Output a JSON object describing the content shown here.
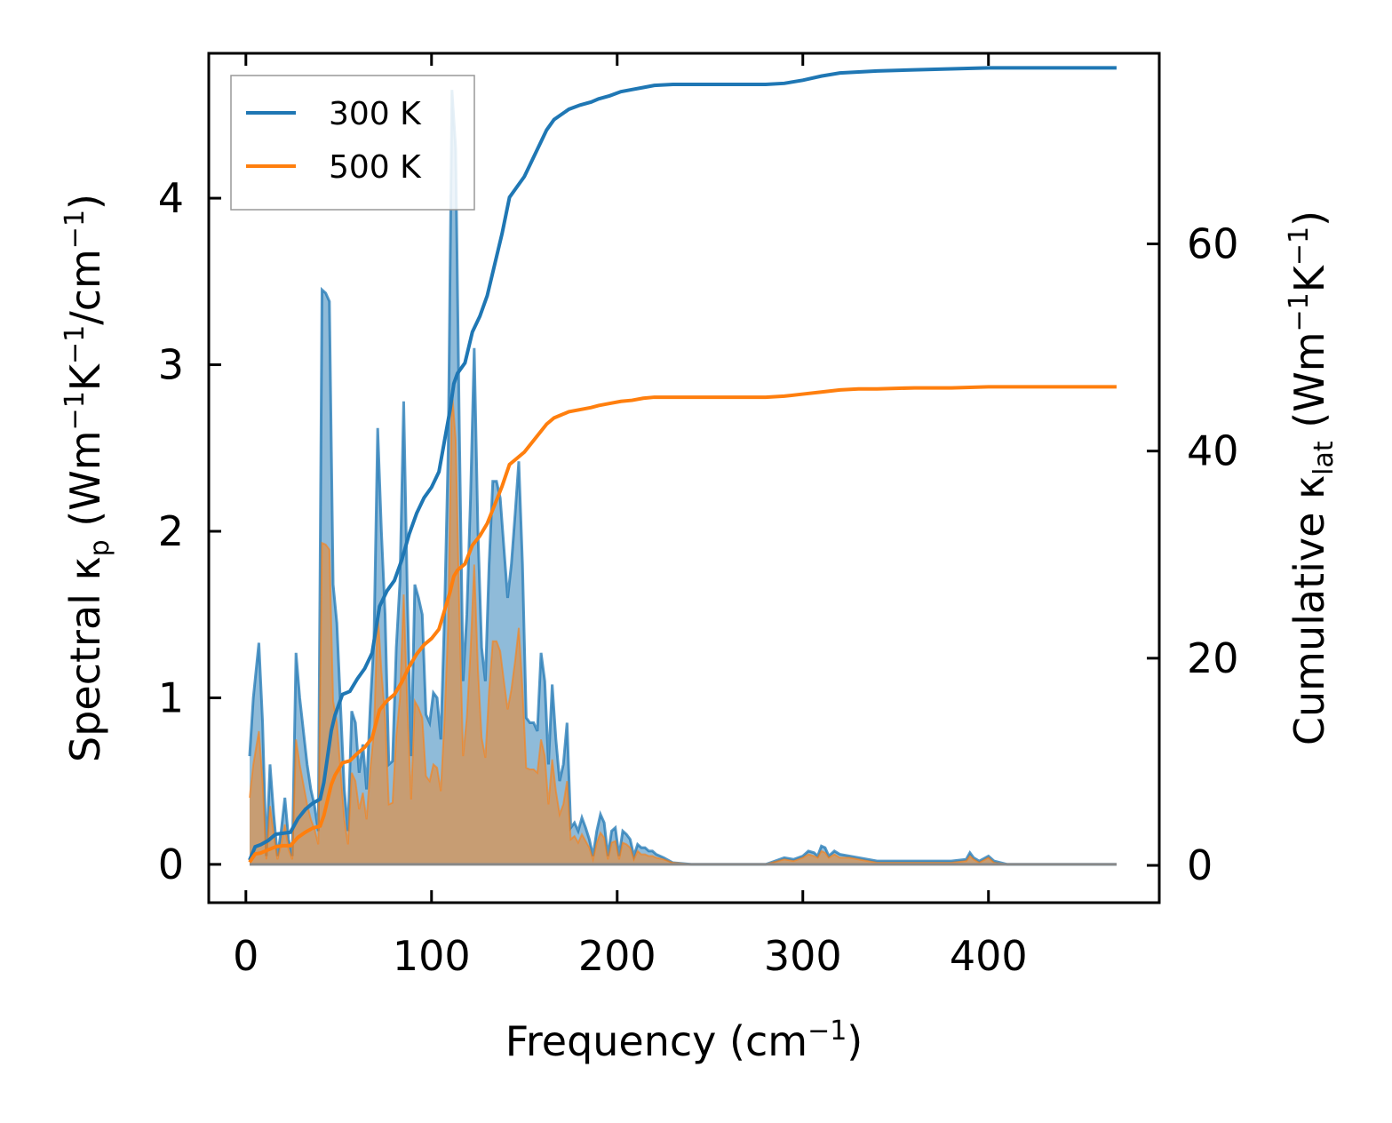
{
  "chart_data": {
    "type": "line",
    "xlabel_main": "Frequency (cm",
    "xlabel_sup": "−1",
    "xlabel_close": ")",
    "ylabel_left": {
      "p1": "Spectral κ",
      "s1": "p",
      "p2": " (Wm",
      "s2": "−1",
      "p3": "K",
      "s3": "−1",
      "p4": "/cm",
      "s4": "−1",
      "p5": ")"
    },
    "ylabel_right": {
      "p1": "Cumulative κ",
      "s1": "lat",
      "p2": " (Wm",
      "s2": "−1",
      "p3": "K",
      "s3": "−1",
      "p4": ")"
    },
    "xlim": [
      -20,
      492
    ],
    "ylim_left": [
      -0.23,
      4.87
    ],
    "ylim_right": [
      -3.6,
      78.4
    ],
    "x_ticks": [
      "0",
      "100",
      "200",
      "300",
      "400"
    ],
    "y_left_ticks": [
      "0",
      "1",
      "2",
      "3",
      "4"
    ],
    "y_right_ticks": [
      "0",
      "20",
      "40",
      "60"
    ],
    "colors": {
      "300K": "#1f77b4",
      "500K": "#ff7f0e",
      "fill_300K": "#1f77b4",
      "fill_500K": "#ff7f0e"
    },
    "legend": [
      "300 K",
      "500 K"
    ],
    "legend_position": "top-left",
    "spectral_300K": [
      [
        2,
        0.65
      ],
      [
        4,
        1.0
      ],
      [
        7,
        1.33
      ],
      [
        9,
        0.85
      ],
      [
        11,
        0.05
      ],
      [
        13,
        0.6
      ],
      [
        15,
        0.3
      ],
      [
        17,
        0.05
      ],
      [
        19,
        0.2
      ],
      [
        21,
        0.4
      ],
      [
        23,
        0.15
      ],
      [
        25,
        0.05
      ],
      [
        27,
        1.27
      ],
      [
        29,
        1.0
      ],
      [
        31,
        0.8
      ],
      [
        33,
        0.6
      ],
      [
        35,
        0.45
      ],
      [
        37,
        0.35
      ],
      [
        39,
        0.2
      ],
      [
        41,
        3.45
      ],
      [
        43,
        3.43
      ],
      [
        45,
        3.38
      ],
      [
        47,
        1.68
      ],
      [
        49,
        1.45
      ],
      [
        51,
        0.95
      ],
      [
        53,
        0.45
      ],
      [
        55,
        0.2
      ],
      [
        57,
        0.92
      ],
      [
        59,
        0.85
      ],
      [
        61,
        0.55
      ],
      [
        63,
        0.72
      ],
      [
        65,
        0.45
      ],
      [
        67,
        0.95
      ],
      [
        69,
        1.35
      ],
      [
        71,
        2.62
      ],
      [
        73,
        2.0
      ],
      [
        75,
        1.5
      ],
      [
        77,
        0.6
      ],
      [
        79,
        0.62
      ],
      [
        81,
        1.3
      ],
      [
        83,
        1.7
      ],
      [
        85,
        2.78
      ],
      [
        87,
        1.6
      ],
      [
        89,
        0.65
      ],
      [
        91,
        1.68
      ],
      [
        93,
        1.6
      ],
      [
        95,
        1.5
      ],
      [
        97,
        0.9
      ],
      [
        99,
        0.85
      ],
      [
        101,
        1.03
      ],
      [
        103,
        1.0
      ],
      [
        105,
        0.75
      ],
      [
        107,
        1.5
      ],
      [
        109,
        2.5
      ],
      [
        111,
        4.65
      ],
      [
        113,
        4.3
      ],
      [
        115,
        2.6
      ],
      [
        117,
        1.1
      ],
      [
        119,
        1.5
      ],
      [
        121,
        2.2
      ],
      [
        123,
        3.1
      ],
      [
        125,
        2.0
      ],
      [
        127,
        1.3
      ],
      [
        129,
        1.1
      ],
      [
        131,
        1.8
      ],
      [
        133,
        2.3
      ],
      [
        135,
        2.3
      ],
      [
        137,
        2.2
      ],
      [
        139,
        1.9
      ],
      [
        141,
        1.6
      ],
      [
        143,
        1.8
      ],
      [
        145,
        2.1
      ],
      [
        147,
        2.42
      ],
      [
        149,
        1.8
      ],
      [
        151,
        0.88
      ],
      [
        153,
        0.85
      ],
      [
        155,
        0.85
      ],
      [
        157,
        0.8
      ],
      [
        159,
        1.27
      ],
      [
        161,
        1.1
      ],
      [
        163,
        0.6
      ],
      [
        165,
        1.08
      ],
      [
        167,
        0.75
      ],
      [
        169,
        0.5
      ],
      [
        171,
        0.6
      ],
      [
        173,
        0.85
      ],
      [
        175,
        0.22
      ],
      [
        177,
        0.25
      ],
      [
        179,
        0.2
      ],
      [
        181,
        0.28
      ],
      [
        183,
        0.22
      ],
      [
        185,
        0.15
      ],
      [
        187,
        0.05
      ],
      [
        189,
        0.2
      ],
      [
        191,
        0.3
      ],
      [
        193,
        0.25
      ],
      [
        195,
        0.05
      ],
      [
        197,
        0.2
      ],
      [
        199,
        0.22
      ],
      [
        201,
        0.05
      ],
      [
        203,
        0.2
      ],
      [
        205,
        0.18
      ],
      [
        207,
        0.15
      ],
      [
        209,
        0.05
      ],
      [
        211,
        0.12
      ],
      [
        213,
        0.1
      ],
      [
        215,
        0.1
      ],
      [
        217,
        0.08
      ],
      [
        219,
        0.08
      ],
      [
        221,
        0.06
      ],
      [
        225,
        0.04
      ],
      [
        230,
        0.01
      ],
      [
        240,
        0.0
      ],
      [
        280,
        0.0
      ],
      [
        290,
        0.04
      ],
      [
        295,
        0.03
      ],
      [
        300,
        0.05
      ],
      [
        303,
        0.08
      ],
      [
        306,
        0.07
      ],
      [
        308,
        0.05
      ],
      [
        310,
        0.11
      ],
      [
        312,
        0.1
      ],
      [
        314,
        0.05
      ],
      [
        317,
        0.08
      ],
      [
        320,
        0.06
      ],
      [
        325,
        0.05
      ],
      [
        330,
        0.04
      ],
      [
        340,
        0.02
      ],
      [
        360,
        0.02
      ],
      [
        370,
        0.02
      ],
      [
        380,
        0.02
      ],
      [
        388,
        0.03
      ],
      [
        390,
        0.07
      ],
      [
        392,
        0.04
      ],
      [
        395,
        0.02
      ],
      [
        400,
        0.05
      ],
      [
        403,
        0.02
      ],
      [
        410,
        0.0
      ],
      [
        469,
        0.0
      ]
    ],
    "spectral_500K": [
      [
        2,
        0.4
      ],
      [
        4,
        0.6
      ],
      [
        7,
        0.8
      ],
      [
        9,
        0.5
      ],
      [
        11,
        0.03
      ],
      [
        13,
        0.35
      ],
      [
        15,
        0.18
      ],
      [
        17,
        0.03
      ],
      [
        19,
        0.12
      ],
      [
        21,
        0.24
      ],
      [
        23,
        0.09
      ],
      [
        25,
        0.03
      ],
      [
        27,
        0.75
      ],
      [
        29,
        0.6
      ],
      [
        31,
        0.48
      ],
      [
        33,
        0.36
      ],
      [
        35,
        0.27
      ],
      [
        37,
        0.21
      ],
      [
        39,
        0.12
      ],
      [
        41,
        1.93
      ],
      [
        43,
        1.92
      ],
      [
        45,
        1.89
      ],
      [
        47,
        0.98
      ],
      [
        49,
        0.85
      ],
      [
        51,
        0.56
      ],
      [
        53,
        0.27
      ],
      [
        55,
        0.12
      ],
      [
        57,
        0.55
      ],
      [
        59,
        0.5
      ],
      [
        61,
        0.33
      ],
      [
        63,
        0.43
      ],
      [
        65,
        0.27
      ],
      [
        67,
        0.57
      ],
      [
        69,
        0.8
      ],
      [
        71,
        1.52
      ],
      [
        73,
        1.16
      ],
      [
        75,
        0.88
      ],
      [
        77,
        0.36
      ],
      [
        79,
        0.37
      ],
      [
        81,
        0.77
      ],
      [
        83,
        1.0
      ],
      [
        85,
        1.62
      ],
      [
        87,
        0.94
      ],
      [
        89,
        0.39
      ],
      [
        91,
        0.98
      ],
      [
        93,
        0.94
      ],
      [
        95,
        0.88
      ],
      [
        97,
        0.53
      ],
      [
        99,
        0.5
      ],
      [
        101,
        0.6
      ],
      [
        103,
        0.58
      ],
      [
        105,
        0.44
      ],
      [
        107,
        0.87
      ],
      [
        109,
        1.45
      ],
      [
        111,
        2.85
      ],
      [
        113,
        2.55
      ],
      [
        115,
        1.52
      ],
      [
        117,
        0.65
      ],
      [
        119,
        0.88
      ],
      [
        121,
        1.28
      ],
      [
        123,
        1.8
      ],
      [
        125,
        1.17
      ],
      [
        127,
        0.76
      ],
      [
        129,
        0.64
      ],
      [
        131,
        1.04
      ],
      [
        133,
        1.34
      ],
      [
        135,
        1.34
      ],
      [
        137,
        1.28
      ],
      [
        139,
        1.1
      ],
      [
        141,
        0.93
      ],
      [
        143,
        1.05
      ],
      [
        145,
        1.22
      ],
      [
        147,
        1.42
      ],
      [
        149,
        1.05
      ],
      [
        151,
        0.58
      ],
      [
        153,
        0.57
      ],
      [
        155,
        0.57
      ],
      [
        157,
        0.55
      ],
      [
        159,
        0.75
      ],
      [
        161,
        0.65
      ],
      [
        163,
        0.36
      ],
      [
        165,
        0.63
      ],
      [
        167,
        0.44
      ],
      [
        169,
        0.3
      ],
      [
        171,
        0.36
      ],
      [
        173,
        0.5
      ],
      [
        175,
        0.15
      ],
      [
        177,
        0.17
      ],
      [
        179,
        0.13
      ],
      [
        181,
        0.18
      ],
      [
        183,
        0.14
      ],
      [
        185,
        0.1
      ],
      [
        187,
        0.03
      ],
      [
        189,
        0.13
      ],
      [
        191,
        0.19
      ],
      [
        193,
        0.16
      ],
      [
        195,
        0.03
      ],
      [
        197,
        0.13
      ],
      [
        199,
        0.14
      ],
      [
        201,
        0.03
      ],
      [
        203,
        0.13
      ],
      [
        205,
        0.12
      ],
      [
        207,
        0.1
      ],
      [
        209,
        0.03
      ],
      [
        211,
        0.08
      ],
      [
        213,
        0.06
      ],
      [
        215,
        0.06
      ],
      [
        217,
        0.05
      ],
      [
        219,
        0.05
      ],
      [
        221,
        0.04
      ],
      [
        225,
        0.03
      ],
      [
        230,
        0.01
      ],
      [
        240,
        0.0
      ],
      [
        280,
        0.0
      ],
      [
        290,
        0.03
      ],
      [
        295,
        0.02
      ],
      [
        300,
        0.04
      ],
      [
        303,
        0.06
      ],
      [
        306,
        0.05
      ],
      [
        308,
        0.04
      ],
      [
        310,
        0.08
      ],
      [
        312,
        0.07
      ],
      [
        314,
        0.04
      ],
      [
        317,
        0.06
      ],
      [
        320,
        0.04
      ],
      [
        325,
        0.04
      ],
      [
        330,
        0.03
      ],
      [
        340,
        0.01
      ],
      [
        360,
        0.01
      ],
      [
        370,
        0.01
      ],
      [
        380,
        0.01
      ],
      [
        388,
        0.02
      ],
      [
        390,
        0.05
      ],
      [
        392,
        0.03
      ],
      [
        395,
        0.01
      ],
      [
        400,
        0.04
      ],
      [
        403,
        0.01
      ],
      [
        410,
        0.0
      ],
      [
        469,
        0.0
      ]
    ],
    "cumulative_300K": [
      [
        2,
        0.5
      ],
      [
        5,
        1.8
      ],
      [
        8,
        2.0
      ],
      [
        12,
        2.4
      ],
      [
        16,
        3.0
      ],
      [
        20,
        3.1
      ],
      [
        24,
        3.2
      ],
      [
        28,
        4.5
      ],
      [
        32,
        5.4
      ],
      [
        36,
        6.0
      ],
      [
        40,
        6.4
      ],
      [
        42,
        8.0
      ],
      [
        44,
        10.5
      ],
      [
        46,
        13.0
      ],
      [
        48,
        14.5
      ],
      [
        50,
        15.5
      ],
      [
        52,
        16.5
      ],
      [
        56,
        16.8
      ],
      [
        60,
        18.0
      ],
      [
        64,
        19.0
      ],
      [
        68,
        20.5
      ],
      [
        72,
        25.0
      ],
      [
        76,
        26.5
      ],
      [
        80,
        27.5
      ],
      [
        84,
        29.5
      ],
      [
        88,
        32.0
      ],
      [
        92,
        34.0
      ],
      [
        96,
        35.5
      ],
      [
        100,
        36.5
      ],
      [
        104,
        38.0
      ],
      [
        108,
        42.0
      ],
      [
        110,
        44.0
      ],
      [
        112,
        46.5
      ],
      [
        114,
        47.5
      ],
      [
        118,
        48.5
      ],
      [
        122,
        51.5
      ],
      [
        126,
        53.0
      ],
      [
        130,
        55.0
      ],
      [
        134,
        58.0
      ],
      [
        138,
        61.0
      ],
      [
        142,
        64.5
      ],
      [
        146,
        65.5
      ],
      [
        150,
        66.5
      ],
      [
        154,
        68.0
      ],
      [
        158,
        69.5
      ],
      [
        162,
        71.0
      ],
      [
        166,
        72.0
      ],
      [
        170,
        72.5
      ],
      [
        174,
        73.0
      ],
      [
        180,
        73.4
      ],
      [
        186,
        73.7
      ],
      [
        190,
        74.0
      ],
      [
        196,
        74.3
      ],
      [
        202,
        74.7
      ],
      [
        208,
        74.9
      ],
      [
        214,
        75.1
      ],
      [
        220,
        75.3
      ],
      [
        230,
        75.4
      ],
      [
        250,
        75.4
      ],
      [
        280,
        75.4
      ],
      [
        290,
        75.5
      ],
      [
        300,
        75.8
      ],
      [
        310,
        76.2
      ],
      [
        320,
        76.5
      ],
      [
        330,
        76.6
      ],
      [
        340,
        76.7
      ],
      [
        360,
        76.8
      ],
      [
        380,
        76.9
      ],
      [
        400,
        77.0
      ],
      [
        430,
        77.0
      ],
      [
        469,
        77.0
      ]
    ],
    "cumulative_500K": [
      [
        2,
        0.3
      ],
      [
        5,
        1.1
      ],
      [
        8,
        1.2
      ],
      [
        12,
        1.5
      ],
      [
        16,
        1.8
      ],
      [
        20,
        1.9
      ],
      [
        24,
        1.9
      ],
      [
        28,
        2.7
      ],
      [
        32,
        3.2
      ],
      [
        36,
        3.6
      ],
      [
        40,
        3.8
      ],
      [
        42,
        4.8
      ],
      [
        44,
        6.3
      ],
      [
        46,
        7.8
      ],
      [
        48,
        8.7
      ],
      [
        50,
        9.3
      ],
      [
        52,
        9.9
      ],
      [
        56,
        10.1
      ],
      [
        60,
        10.8
      ],
      [
        64,
        11.4
      ],
      [
        68,
        12.3
      ],
      [
        72,
        15.0
      ],
      [
        76,
        15.9
      ],
      [
        80,
        16.5
      ],
      [
        84,
        17.7
      ],
      [
        88,
        19.2
      ],
      [
        92,
        20.4
      ],
      [
        96,
        21.3
      ],
      [
        100,
        21.9
      ],
      [
        104,
        22.8
      ],
      [
        108,
        25.2
      ],
      [
        110,
        26.4
      ],
      [
        112,
        27.9
      ],
      [
        114,
        28.5
      ],
      [
        118,
        29.1
      ],
      [
        122,
        30.9
      ],
      [
        126,
        31.8
      ],
      [
        130,
        33.0
      ],
      [
        134,
        34.8
      ],
      [
        138,
        36.6
      ],
      [
        142,
        38.7
      ],
      [
        146,
        39.3
      ],
      [
        150,
        39.9
      ],
      [
        154,
        40.8
      ],
      [
        158,
        41.7
      ],
      [
        162,
        42.6
      ],
      [
        166,
        43.2
      ],
      [
        170,
        43.5
      ],
      [
        174,
        43.8
      ],
      [
        180,
        44.0
      ],
      [
        186,
        44.2
      ],
      [
        190,
        44.4
      ],
      [
        196,
        44.6
      ],
      [
        202,
        44.8
      ],
      [
        208,
        44.9
      ],
      [
        214,
        45.1
      ],
      [
        220,
        45.2
      ],
      [
        230,
        45.2
      ],
      [
        250,
        45.2
      ],
      [
        280,
        45.2
      ],
      [
        290,
        45.3
      ],
      [
        300,
        45.5
      ],
      [
        310,
        45.7
      ],
      [
        320,
        45.9
      ],
      [
        330,
        46.0
      ],
      [
        340,
        46.0
      ],
      [
        360,
        46.1
      ],
      [
        380,
        46.1
      ],
      [
        400,
        46.2
      ],
      [
        430,
        46.2
      ],
      [
        469,
        46.2
      ]
    ]
  }
}
